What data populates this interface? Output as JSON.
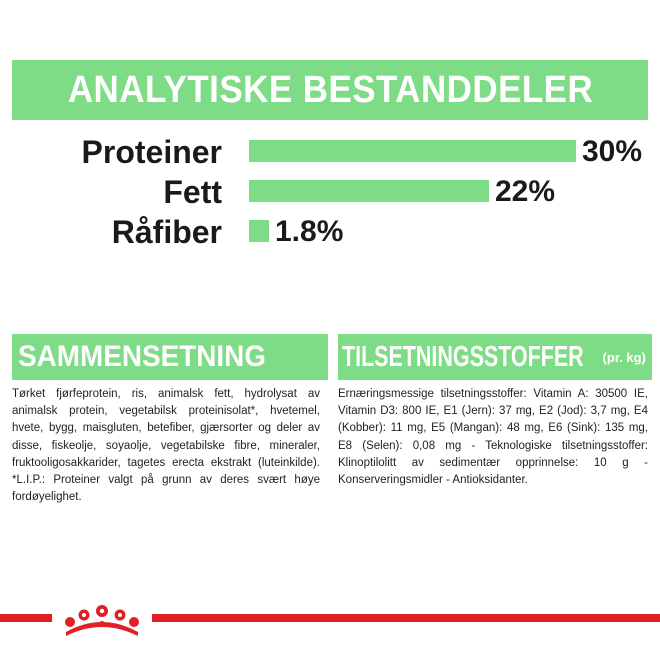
{
  "header": {
    "title": "ANALYTISKE BESTANDDELER"
  },
  "nutrients": [
    {
      "label": "Proteiner",
      "value_text": "30%",
      "value": 30
    },
    {
      "label": "Fett",
      "value_text": "22%",
      "value": 22
    },
    {
      "label": "Råfiber",
      "value_text": "1.8%",
      "value": 1.8
    }
  ],
  "composition": {
    "title": "SAMMENSETNING",
    "text": "Tørket fjørfeprotein, ris, animalsk fett, hydrolysat av animalsk protein, vegetabilsk proteinisolat*, hvetemel, hvete, bygg, maisgluten, betefiber, gjærsorter og deler av disse, fiskeolje, soyaolje, vegetabilske fibre, mineraler, fruktooligosakkarider, tagetes erecta ekstrakt (luteinkilde). *L.I.P.: Proteiner valgt på grunn av deres svært høye fordøyelighet."
  },
  "additives": {
    "title": "TILSETNINGSSTOFFER",
    "unit": "(pr. kg)",
    "text": "Ernæringsmessige tilsetningsstoffer: Vitamin A: 30500 IE, Vitamin D3: 800 IE, E1 (Jern): 37 mg, E2 (Jod): 3,7 mg, E4 (Kobber): 11 mg, E5 (Mangan): 48 mg, E6 (Sink): 135 mg, E8 (Selen): 0,08 mg - Teknologiske tilsetningsstoffer: Klinoptilolitt av sedimentær opprinnelse: 10 g - Konserveringsmidler - Antioksidanter."
  },
  "colors": {
    "accent": "#7fdc86",
    "brand_red": "#e31f26",
    "text": "#1a1a1a"
  },
  "logo": {
    "name": "crown-logo"
  }
}
